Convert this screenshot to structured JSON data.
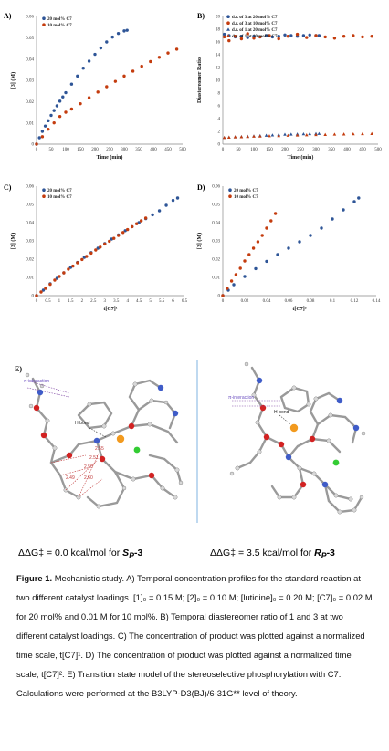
{
  "panels": {
    "A": "A)",
    "B": "B)",
    "C": "C)",
    "D": "D)",
    "E": "E)"
  },
  "chart_data": [
    {
      "panel": "A",
      "type": "scatter",
      "xlabel": "Time (min)",
      "ylabel": "[3] (M)",
      "xlim": [
        0,
        500
      ],
      "ylim": [
        0,
        0.06
      ],
      "xticks": [
        "0",
        "50",
        "100",
        "150",
        "200",
        "250",
        "300",
        "350",
        "400",
        "450",
        "500"
      ],
      "yticks": [
        "0",
        "0.01",
        "0.02",
        "0.03",
        "0.04",
        "0.05",
        "0.06"
      ],
      "legend_position": "top-left",
      "series": [
        {
          "name": "20 mol% C7",
          "color": "#2e5597",
          "x": [
            0,
            10,
            20,
            30,
            40,
            50,
            60,
            70,
            80,
            90,
            100,
            120,
            140,
            160,
            180,
            200,
            220,
            240,
            260,
            280,
            300,
            310
          ],
          "y": [
            0,
            0.003,
            0.006,
            0.0085,
            0.011,
            0.0135,
            0.0158,
            0.018,
            0.0202,
            0.0222,
            0.0242,
            0.0282,
            0.032,
            0.0357,
            0.039,
            0.0422,
            0.0452,
            0.048,
            0.0503,
            0.052,
            0.0532,
            0.0535
          ]
        },
        {
          "name": "10 mol% C7",
          "color": "#c43c0e",
          "x": [
            0,
            20,
            40,
            60,
            80,
            100,
            120,
            150,
            180,
            210,
            240,
            270,
            300,
            330,
            360,
            390,
            420,
            450,
            480
          ],
          "y": [
            0,
            0.0035,
            0.007,
            0.01,
            0.013,
            0.015,
            0.0165,
            0.019,
            0.0218,
            0.0245,
            0.027,
            0.0295,
            0.032,
            0.0343,
            0.0366,
            0.0388,
            0.0408,
            0.0428,
            0.0446
          ]
        }
      ]
    },
    {
      "panel": "B",
      "type": "scatter",
      "xlabel": "Time (min)",
      "ylabel": "Diastereomer Ratio",
      "xlim": [
        0,
        500
      ],
      "ylim": [
        0,
        20
      ],
      "xticks": [
        "0",
        "50",
        "100",
        "150",
        "200",
        "250",
        "300",
        "350",
        "400",
        "450",
        "500"
      ],
      "yticks": [
        "0",
        "2",
        "4",
        "6",
        "8",
        "10",
        "12",
        "14",
        "16",
        "18",
        "20"
      ],
      "legend_position": "top",
      "series": [
        {
          "name": "d.r. of 3 at 20 mol% C7",
          "color": "#2e5597",
          "marker": "circle",
          "x": [
            5,
            20,
            40,
            60,
            80,
            100,
            120,
            140,
            160,
            180,
            200,
            220,
            240,
            260,
            280,
            300,
            310
          ],
          "y": [
            17.2,
            17.0,
            16.8,
            16.9,
            16.7,
            16.9,
            16.8,
            17.0,
            16.8,
            16.9,
            17.1,
            17.0,
            16.9,
            17.0,
            17.1,
            17.0,
            17.0
          ]
        },
        {
          "name": "d.r. of 3 at 10 mol% C7",
          "color": "#c43c0e",
          "marker": "circle",
          "x": [
            5,
            20,
            40,
            60,
            80,
            100,
            120,
            150,
            180,
            210,
            240,
            270,
            300,
            330,
            360,
            390,
            420,
            450,
            480
          ],
          "y": [
            16.8,
            16.2,
            16.9,
            16.5,
            17.3,
            16.6,
            16.8,
            17.0,
            16.5,
            16.9,
            17.2,
            16.7,
            17.0,
            16.8,
            16.6,
            16.9,
            17.0,
            16.8,
            16.9
          ]
        },
        {
          "name": "d.r. of 1 at 20 mol% C7",
          "color": "#2e5597",
          "marker": "triangle",
          "x": [
            5,
            20,
            40,
            60,
            80,
            100,
            120,
            140,
            160,
            180,
            200,
            220,
            240,
            260,
            280,
            300,
            310
          ],
          "y": [
            1.0,
            1.05,
            1.1,
            1.15,
            1.2,
            1.25,
            1.3,
            1.35,
            1.4,
            1.45,
            1.5,
            1.52,
            1.55,
            1.58,
            1.6,
            1.62,
            1.63
          ]
        },
        {
          "name": "d.r. of 1 at 10 mol% C7",
          "color": "#c43c0e",
          "marker": "triangle",
          "x": [
            5,
            20,
            40,
            60,
            80,
            100,
            120,
            150,
            180,
            210,
            240,
            270,
            300,
            330,
            360,
            390,
            420,
            450,
            480
          ],
          "y": [
            1.0,
            1.05,
            1.1,
            1.12,
            1.15,
            1.2,
            1.22,
            1.27,
            1.3,
            1.34,
            1.38,
            1.42,
            1.45,
            1.48,
            1.52,
            1.55,
            1.58,
            1.6,
            1.62
          ]
        }
      ]
    },
    {
      "panel": "C",
      "type": "scatter",
      "xlabel": "t[C7]¹",
      "ylabel": "[3] (M)",
      "xlim": [
        0,
        6.5
      ],
      "ylim": [
        0,
        0.06
      ],
      "xticks": [
        "0",
        "0.5",
        "1",
        "1.5",
        "2",
        "2.5",
        "3",
        "3.5",
        "4",
        "4.5",
        "5",
        "5.5",
        "6",
        "6.5"
      ],
      "yticks": [
        "0",
        "0.01",
        "0.02",
        "0.03",
        "0.04",
        "0.05",
        "0.06"
      ],
      "legend_position": "top-left",
      "series": [
        {
          "name": "20 mol% C7",
          "color": "#2e5597",
          "x": [
            0,
            0.3,
            0.6,
            0.9,
            1.2,
            1.5,
            1.8,
            2.1,
            2.4,
            2.7,
            3.0,
            3.3,
            3.6,
            3.9,
            4.2,
            4.5,
            4.8,
            5.1,
            5.4,
            5.7,
            6.0,
            6.2
          ],
          "y": [
            0,
            0.003,
            0.0065,
            0.0095,
            0.0125,
            0.0155,
            0.0182,
            0.021,
            0.0236,
            0.026,
            0.0285,
            0.031,
            0.0333,
            0.0356,
            0.0378,
            0.04,
            0.0422,
            0.0443,
            0.0465,
            0.0495,
            0.0522,
            0.0535
          ]
        },
        {
          "name": "10 mol% C7",
          "color": "#c43c0e",
          "x": [
            0,
            0.2,
            0.4,
            0.6,
            0.8,
            1.0,
            1.2,
            1.4,
            1.6,
            1.8,
            2.0,
            2.2,
            2.4,
            2.6,
            2.8,
            3.0,
            3.2,
            3.4,
            3.6,
            3.8,
            4.0,
            4.2,
            4.4,
            4.6,
            4.8
          ],
          "y": [
            0,
            0.002,
            0.004,
            0.0062,
            0.0085,
            0.0105,
            0.0125,
            0.0145,
            0.0162,
            0.018,
            0.0198,
            0.0215,
            0.0233,
            0.025,
            0.0266,
            0.0283,
            0.0298,
            0.0314,
            0.033,
            0.0346,
            0.0362,
            0.0378,
            0.0394,
            0.041,
            0.0425
          ]
        }
      ]
    },
    {
      "panel": "D",
      "type": "scatter",
      "xlabel": "t[C7]²",
      "ylabel": "[3] (M)",
      "xlim": [
        0,
        0.14
      ],
      "ylim": [
        0,
        0.06
      ],
      "xticks": [
        "0",
        "0.02",
        "0.04",
        "0.06",
        "0.08",
        "0.1",
        "0.12",
        "0.14"
      ],
      "yticks": [
        "0",
        "0.01",
        "0.02",
        "0.03",
        "0.04",
        "0.05",
        "0.06"
      ],
      "legend_position": "top-left",
      "series": [
        {
          "name": "20 mol% C7",
          "color": "#2e5597",
          "x": [
            0,
            0.005,
            0.01,
            0.02,
            0.03,
            0.04,
            0.05,
            0.06,
            0.07,
            0.08,
            0.09,
            0.1,
            0.11,
            0.12,
            0.124
          ],
          "y": [
            0,
            0.003,
            0.006,
            0.0105,
            0.0148,
            0.0188,
            0.0225,
            0.026,
            0.0295,
            0.033,
            0.037,
            0.042,
            0.047,
            0.0515,
            0.0535
          ]
        },
        {
          "name": "10 mol% C7",
          "color": "#c43c0e",
          "x": [
            0,
            0.004,
            0.008,
            0.012,
            0.016,
            0.02,
            0.024,
            0.028,
            0.032,
            0.036,
            0.04,
            0.044,
            0.048
          ],
          "y": [
            0,
            0.004,
            0.008,
            0.0115,
            0.015,
            0.019,
            0.0225,
            0.026,
            0.0295,
            0.033,
            0.037,
            0.041,
            0.045
          ]
        }
      ]
    }
  ],
  "figureE": {
    "left": {
      "pi_label": "π-interaction",
      "hbond_label": "H-bond",
      "distances": [
        "2.55",
        "2.51",
        "2.50",
        "2.49",
        "2.60"
      ]
    },
    "right": {
      "pi_label": "π-interaction",
      "hbond_label": "H-bond"
    }
  },
  "energies": {
    "left_prefix": "ΔΔG‡ = 0.0 kcal/mol for ",
    "left_compound": "S",
    "left_sub": "P",
    "left_suffix": "-3",
    "right_prefix": "ΔΔG‡ = 3.5 kcal/mol for ",
    "right_compound": "R",
    "right_sub": "P",
    "right_suffix": "-3"
  },
  "caption": {
    "title": "Figure 1.",
    "text": "Mechanistic study. A) Temporal concentration profiles for the standard reaction at two different catalyst loadings. [1]₀ = 0.15 M; [2]₀ = 0.10 M; [lutidine]₀ = 0.20 M; [C7]₀ = 0.02 M for 20 mol% and 0.01 M for 10 mol%. B) Temporal diastereomer ratio of 1 and 3 at two different catalyst loadings. C) The concentration of product was plotted against a normalized time scale, t[C7]¹. D) The concentration of product was plotted against a normalized time scale, t[C7]². E) Transition state model of the stereoselective phosphorylation with C7. Calculations were performed at the B3LYP-D3(BJ)/6-31G** level of theory."
  }
}
